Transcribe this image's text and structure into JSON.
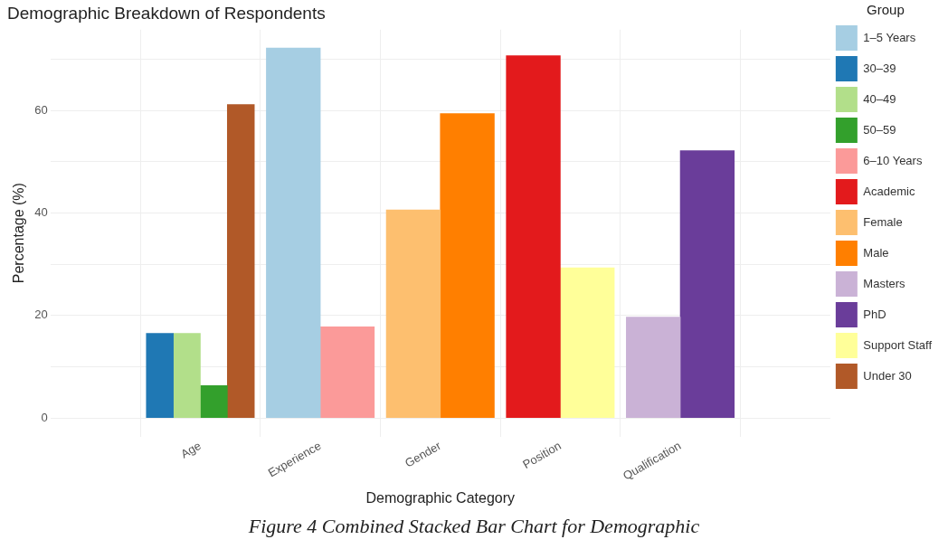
{
  "chart_data": {
    "type": "bar",
    "title": "Demographic Breakdown of Respondents",
    "xlabel": "Demographic Category",
    "ylabel": "Percentage (%)",
    "legend_title": "Group",
    "categories": [
      "Age",
      "Experience",
      "Gender",
      "Position",
      "Qualification"
    ],
    "series": [
      {
        "name": "1–5 Years",
        "color": "#a6cee3",
        "values": [
          null,
          72.2,
          null,
          null,
          null
        ]
      },
      {
        "name": "30–39",
        "color": "#1f78b4",
        "values": [
          16.5,
          null,
          null,
          null,
          null
        ]
      },
      {
        "name": "40–49",
        "color": "#b2df8a",
        "values": [
          16.5,
          null,
          null,
          null,
          null
        ]
      },
      {
        "name": "50–59",
        "color": "#33a02c",
        "values": [
          6.3,
          null,
          null,
          null,
          null
        ]
      },
      {
        "name": "6–10 Years",
        "color": "#fb9a99",
        "values": [
          null,
          17.8,
          null,
          null,
          null
        ]
      },
      {
        "name": "Academic",
        "color": "#e31a1c",
        "values": [
          null,
          null,
          null,
          70.7,
          null
        ]
      },
      {
        "name": "Female",
        "color": "#fdbf6f",
        "values": [
          null,
          null,
          40.6,
          null,
          null
        ]
      },
      {
        "name": "Male",
        "color": "#ff7f00",
        "values": [
          null,
          null,
          59.4,
          null,
          null
        ]
      },
      {
        "name": "Masters",
        "color": "#cab2d6",
        "values": [
          null,
          null,
          null,
          null,
          19.7
        ]
      },
      {
        "name": "PhD",
        "color": "#6a3d9a",
        "values": [
          null,
          null,
          null,
          null,
          52.2
        ]
      },
      {
        "name": "Support Staff",
        "color": "#ffff99",
        "values": [
          null,
          null,
          null,
          29.3,
          null
        ]
      },
      {
        "name": "Under 30",
        "color": "#b15928",
        "values": [
          61.2,
          null,
          null,
          null,
          null
        ]
      }
    ],
    "ylim": [
      -3.6,
      75.8
    ],
    "yticks": [
      0,
      {
        "value": 10,
        "label": null
      },
      20,
      {
        "value": 30,
        "label": null
      },
      40,
      {
        "value": 50,
        "label": null
      },
      60,
      {
        "value": 70,
        "label": null
      }
    ],
    "grid": true,
    "legend": "right",
    "annotations": [
      "Figure 4 Combined Stacked Bar Chart for Demographic"
    ]
  }
}
